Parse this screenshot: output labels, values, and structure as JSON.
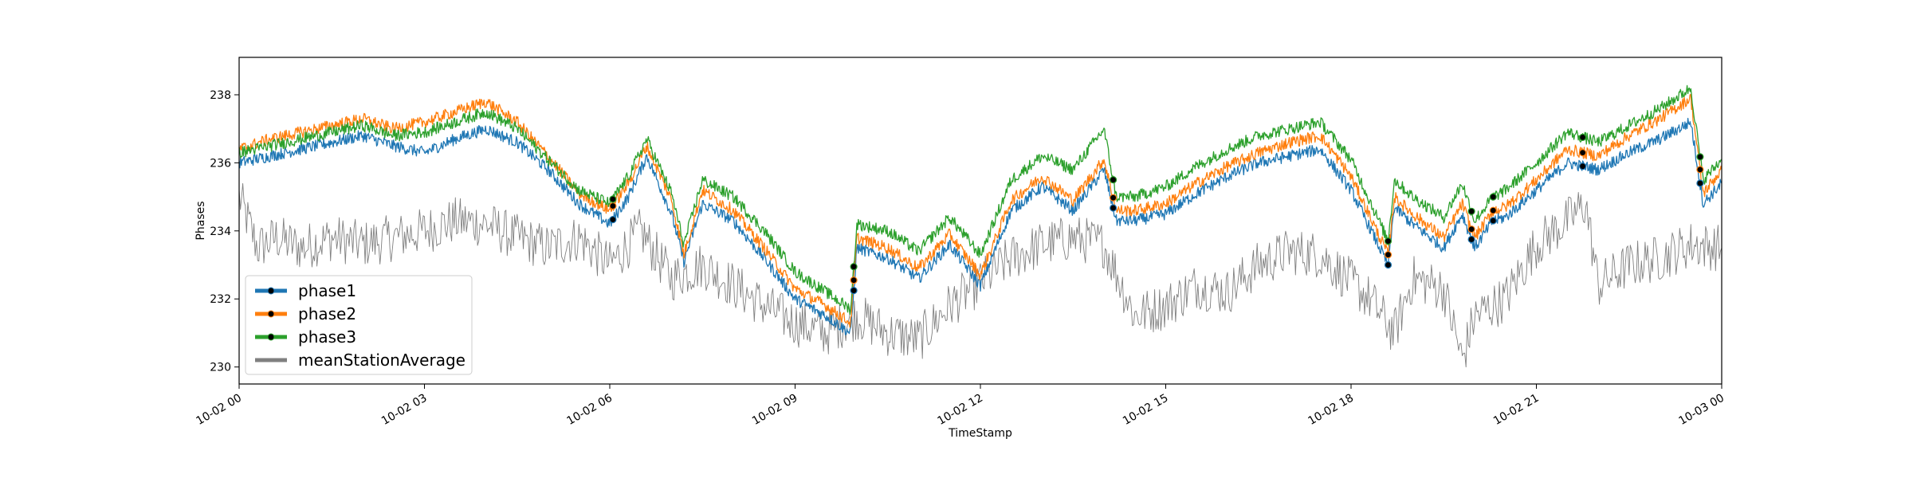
{
  "chart_data": {
    "type": "line",
    "xlabel": "TimeStamp",
    "ylabel": "Phases",
    "xlim": [
      "10-02 00",
      "10-03 00"
    ],
    "ylim": [
      229.5,
      239.1
    ],
    "x_tick_labels": [
      "10-02 00",
      "10-02 03",
      "10-02 06",
      "10-02 09",
      "10-02 12",
      "10-02 15",
      "10-02 18",
      "10-02 21",
      "10-03 00"
    ],
    "x_tick_hours": [
      0,
      3,
      6,
      9,
      12,
      15,
      18,
      21,
      24
    ],
    "y_ticks": [
      230,
      232,
      234,
      236,
      238
    ],
    "grid": false,
    "legend_position": "lower-left",
    "series": [
      {
        "name": "phase1",
        "color": "#1f77b4",
        "marker": "black-dot",
        "x_hours": [
          0,
          0.5,
          1.0,
          1.5,
          2.0,
          2.5,
          3.0,
          3.5,
          4.0,
          4.5,
          5.0,
          5.5,
          6.0,
          6.3,
          6.6,
          7.0,
          7.2,
          7.5,
          8.0,
          8.5,
          9.0,
          9.5,
          9.9,
          10.0,
          10.5,
          11.0,
          11.5,
          12.0,
          12.5,
          13.0,
          13.5,
          14.0,
          14.2,
          14.5,
          15.0,
          15.5,
          16.0,
          16.5,
          17.0,
          17.5,
          18.0,
          18.6,
          18.7,
          19.0,
          19.5,
          19.8,
          20.0,
          20.3,
          20.5,
          21.0,
          21.5,
          22.0,
          22.5,
          23.0,
          23.5,
          23.7,
          24.0
        ],
        "values": [
          236.0,
          236.2,
          236.4,
          236.6,
          236.8,
          236.5,
          236.3,
          236.7,
          237.0,
          236.6,
          235.8,
          234.8,
          234.2,
          235.0,
          236.2,
          234.5,
          233.1,
          234.8,
          234.3,
          233.2,
          232.0,
          231.5,
          231.0,
          233.5,
          233.2,
          232.6,
          233.6,
          232.4,
          234.6,
          235.3,
          234.6,
          235.8,
          234.3,
          234.3,
          234.5,
          235.1,
          235.6,
          236.0,
          236.2,
          236.4,
          235.2,
          233.0,
          234.7,
          234.2,
          233.5,
          234.5,
          233.5,
          234.3,
          234.4,
          235.2,
          236.0,
          235.8,
          236.3,
          236.7,
          237.2,
          234.8,
          235.4
        ]
      },
      {
        "name": "phase2",
        "color": "#ff7f0e",
        "marker": "black-dot",
        "x_hours": [
          0,
          0.5,
          1.0,
          1.5,
          2.0,
          2.5,
          3.0,
          3.5,
          4.0,
          4.5,
          5.0,
          5.5,
          6.0,
          6.3,
          6.6,
          7.0,
          7.2,
          7.5,
          8.0,
          8.5,
          9.0,
          9.5,
          9.9,
          10.0,
          10.5,
          11.0,
          11.5,
          12.0,
          12.5,
          13.0,
          13.5,
          14.0,
          14.2,
          14.5,
          15.0,
          15.5,
          16.0,
          16.5,
          17.0,
          17.5,
          18.0,
          18.6,
          18.7,
          19.0,
          19.5,
          19.8,
          20.0,
          20.3,
          20.5,
          21.0,
          21.5,
          22.0,
          22.5,
          23.0,
          23.5,
          23.7,
          24.0
        ],
        "values": [
          236.4,
          236.7,
          236.9,
          237.1,
          237.3,
          237.0,
          237.2,
          237.5,
          237.8,
          237.2,
          236.2,
          235.1,
          234.6,
          235.4,
          236.5,
          234.9,
          233.3,
          235.2,
          234.6,
          233.5,
          232.3,
          231.8,
          231.3,
          233.8,
          233.5,
          232.9,
          233.9,
          232.7,
          234.9,
          235.6,
          234.9,
          236.1,
          234.6,
          234.6,
          234.8,
          235.4,
          235.9,
          236.3,
          236.6,
          236.8,
          235.6,
          233.3,
          235.0,
          234.5,
          233.8,
          234.8,
          233.8,
          234.6,
          234.7,
          235.5,
          236.4,
          236.2,
          236.8,
          237.3,
          237.9,
          235.1,
          235.8
        ]
      },
      {
        "name": "phase3",
        "color": "#2ca02c",
        "marker": "black-dot",
        "x_hours": [
          0,
          0.5,
          1.0,
          1.5,
          2.0,
          2.5,
          3.0,
          3.5,
          4.0,
          4.5,
          5.0,
          5.5,
          6.0,
          6.3,
          6.6,
          7.0,
          7.2,
          7.5,
          8.0,
          8.5,
          9.0,
          9.5,
          9.9,
          10.0,
          10.5,
          11.0,
          11.5,
          12.0,
          12.5,
          13.0,
          13.5,
          14.0,
          14.2,
          14.5,
          15.0,
          15.5,
          16.0,
          16.5,
          17.0,
          17.5,
          18.0,
          18.6,
          18.7,
          19.0,
          19.5,
          19.8,
          20.0,
          20.3,
          20.5,
          21.0,
          21.5,
          22.0,
          22.5,
          23.0,
          23.5,
          23.7,
          24.0
        ],
        "values": [
          236.3,
          236.5,
          236.7,
          236.9,
          237.1,
          236.8,
          236.9,
          237.2,
          237.5,
          237.0,
          236.1,
          235.2,
          234.8,
          235.6,
          236.7,
          235.1,
          233.6,
          235.5,
          235.0,
          234.0,
          232.8,
          232.2,
          231.7,
          234.2,
          234.0,
          233.4,
          234.4,
          233.3,
          235.5,
          236.2,
          235.8,
          237.0,
          235.0,
          235.0,
          235.3,
          235.9,
          236.4,
          236.8,
          237.0,
          237.2,
          236.1,
          233.7,
          235.5,
          235.0,
          234.4,
          235.4,
          234.3,
          235.0,
          235.2,
          236.0,
          236.9,
          236.6,
          237.1,
          237.6,
          238.2,
          235.5,
          236.1
        ]
      },
      {
        "name": "meanStationAverage",
        "color": "#808080",
        "marker": "none",
        "x_hours": [
          0,
          0.3,
          0.6,
          1.0,
          1.5,
          2.0,
          2.5,
          3.0,
          3.5,
          4.0,
          4.5,
          5.0,
          5.5,
          6.0,
          6.5,
          7.0,
          7.5,
          8.0,
          8.5,
          9.0,
          9.5,
          10.0,
          10.5,
          11.0,
          11.5,
          12.0,
          12.5,
          13.0,
          13.5,
          14.0,
          14.5,
          15.0,
          15.5,
          16.0,
          16.5,
          17.0,
          17.5,
          18.0,
          18.3,
          18.7,
          19.0,
          19.5,
          19.8,
          20.0,
          20.5,
          21.0,
          21.5,
          21.8,
          22.0,
          22.5,
          23.0,
          23.5,
          24.0
        ],
        "values": [
          235.0,
          233.5,
          233.8,
          233.5,
          233.8,
          233.6,
          233.8,
          234.0,
          234.3,
          234.2,
          233.8,
          233.5,
          233.8,
          233.0,
          234.0,
          232.6,
          233.0,
          232.4,
          231.8,
          231.3,
          231.0,
          231.5,
          231.0,
          230.8,
          231.8,
          232.5,
          233.2,
          233.6,
          233.8,
          233.6,
          231.5,
          231.8,
          232.4,
          232.2,
          233.0,
          233.4,
          233.3,
          232.5,
          232.0,
          231.0,
          232.6,
          232.3,
          230.2,
          231.5,
          232.0,
          233.6,
          234.3,
          234.8,
          232.4,
          233.0,
          233.2,
          233.6,
          233.5
        ]
      }
    ]
  }
}
